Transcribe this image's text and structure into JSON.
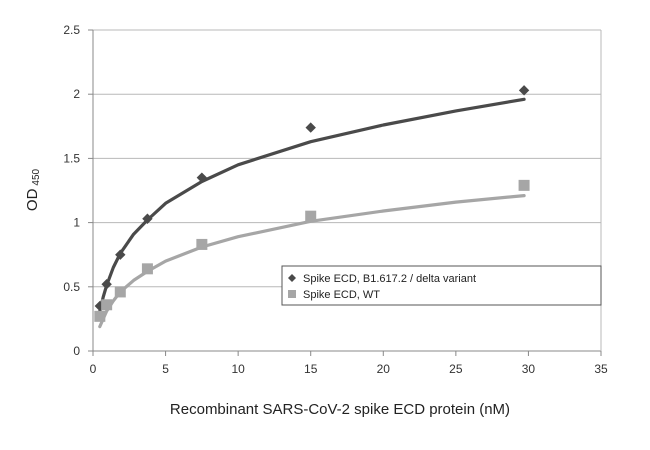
{
  "chart_data": {
    "type": "scatter",
    "title": "",
    "xlabel": "Recombinant SARS-CoV-2 spike ECD protein (nM)",
    "ylabel": {
      "main": "OD",
      "sub": "450"
    },
    "xlim": [
      0,
      35
    ],
    "ylim": [
      0,
      2.5
    ],
    "xticks": [
      "0",
      "5",
      "10",
      "15",
      "20",
      "25",
      "30",
      "35"
    ],
    "yticks": [
      "0",
      "0.5",
      "1",
      "1.5",
      "2",
      "2.5"
    ],
    "grid": "horizontal",
    "legend_position": "center-right",
    "series": [
      {
        "name": "Spike ECD, B1.617.2 / delta variant",
        "marker": "diamond",
        "color": "#4a4a4a",
        "points": [
          {
            "x": 0.47,
            "y": 0.35
          },
          {
            "x": 0.94,
            "y": 0.52
          },
          {
            "x": 1.88,
            "y": 0.75
          },
          {
            "x": 3.75,
            "y": 1.03
          },
          {
            "x": 7.5,
            "y": 1.35
          },
          {
            "x": 15,
            "y": 1.74
          },
          {
            "x": 29.7,
            "y": 2.03
          }
        ],
        "fit": [
          {
            "x": 0.47,
            "y": 0.31
          },
          {
            "x": 0.7,
            "y": 0.42
          },
          {
            "x": 0.94,
            "y": 0.51
          },
          {
            "x": 1.4,
            "y": 0.65
          },
          {
            "x": 1.88,
            "y": 0.76
          },
          {
            "x": 2.8,
            "y": 0.91
          },
          {
            "x": 3.75,
            "y": 1.02
          },
          {
            "x": 5,
            "y": 1.15
          },
          {
            "x": 7.5,
            "y": 1.32
          },
          {
            "x": 10,
            "y": 1.45
          },
          {
            "x": 15,
            "y": 1.63
          },
          {
            "x": 20,
            "y": 1.76
          },
          {
            "x": 25,
            "y": 1.87
          },
          {
            "x": 29.7,
            "y": 1.96
          }
        ]
      },
      {
        "name": "Spike ECD, WT",
        "marker": "square",
        "color": "#a6a6a6",
        "points": [
          {
            "x": 0.47,
            "y": 0.27
          },
          {
            "x": 0.94,
            "y": 0.36
          },
          {
            "x": 1.88,
            "y": 0.46
          },
          {
            "x": 3.75,
            "y": 0.64
          },
          {
            "x": 7.5,
            "y": 0.83
          },
          {
            "x": 15,
            "y": 1.05
          },
          {
            "x": 29.7,
            "y": 1.29
          }
        ],
        "fit": [
          {
            "x": 0.47,
            "y": 0.19
          },
          {
            "x": 0.7,
            "y": 0.25
          },
          {
            "x": 0.94,
            "y": 0.31
          },
          {
            "x": 1.4,
            "y": 0.39
          },
          {
            "x": 1.88,
            "y": 0.46
          },
          {
            "x": 2.8,
            "y": 0.55
          },
          {
            "x": 3.75,
            "y": 0.62
          },
          {
            "x": 5,
            "y": 0.7
          },
          {
            "x": 7.5,
            "y": 0.81
          },
          {
            "x": 10,
            "y": 0.89
          },
          {
            "x": 15,
            "y": 1.01
          },
          {
            "x": 20,
            "y": 1.09
          },
          {
            "x": 25,
            "y": 1.16
          },
          {
            "x": 29.7,
            "y": 1.21
          }
        ]
      }
    ]
  }
}
